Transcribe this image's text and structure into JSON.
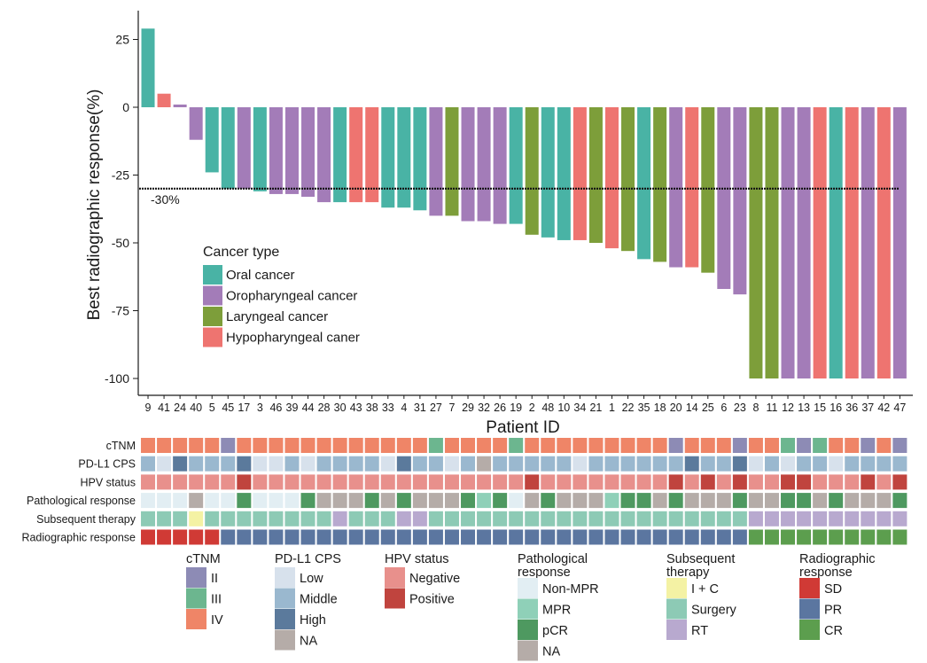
{
  "chart_data": {
    "type": "bar",
    "ylabel": "Best radiographic response(%)",
    "xlabel": "Patient ID",
    "ylim": [
      -105,
      35
    ],
    "yticks": [
      25,
      0,
      -25,
      -50,
      -75,
      -100
    ],
    "threshold": {
      "value": -30,
      "label": "-30%"
    },
    "legend_title": "Cancer type",
    "legend_position": "inside-left",
    "categories": [
      "9",
      "41",
      "24",
      "40",
      "5",
      "45",
      "17",
      "3",
      "46",
      "39",
      "44",
      "28",
      "30",
      "43",
      "38",
      "33",
      "4",
      "31",
      "27",
      "7",
      "29",
      "32",
      "26",
      "19",
      "2",
      "48",
      "10",
      "34",
      "21",
      "1",
      "22",
      "35",
      "18",
      "20",
      "14",
      "25",
      "6",
      "23",
      "8",
      "11",
      "12",
      "13",
      "15",
      "16",
      "36",
      "37",
      "42",
      "47"
    ],
    "values": [
      29,
      5,
      1,
      -12,
      -24,
      -30,
      -30,
      -31,
      -32,
      -32,
      -33,
      -35,
      -35,
      -35,
      -35,
      -37,
      -37,
      -38,
      -40,
      -40,
      -42,
      -42,
      -43,
      -43,
      -47,
      -48,
      -49,
      -49,
      -50,
      -52,
      -53,
      -56,
      -57,
      -59,
      -59,
      -61,
      -67,
      -69,
      -100,
      -100,
      -100,
      -100,
      -100,
      -100,
      -100,
      -100,
      -100,
      -100
    ],
    "series": [
      {
        "name": "Oral cancer",
        "color": "#49b3a5"
      },
      {
        "name": "Oropharyngeal cancer",
        "color": "#a37cb8"
      },
      {
        "name": "Laryngeal cancer",
        "color": "#7d9e3a"
      },
      {
        "name": "Hypopharyngeal caner",
        "color": "#ee7470"
      }
    ],
    "cancer_type_index": [
      0,
      3,
      1,
      1,
      0,
      0,
      1,
      0,
      1,
      1,
      1,
      1,
      0,
      3,
      3,
      0,
      0,
      0,
      1,
      2,
      1,
      1,
      1,
      0,
      2,
      0,
      0,
      3,
      2,
      3,
      2,
      0,
      2,
      1,
      3,
      2,
      1,
      1,
      2,
      2,
      1,
      1,
      3,
      0,
      3,
      1,
      3,
      1
    ],
    "heatmap": {
      "rows": [
        {
          "label": "cTNM",
          "legend_title": "cTNM",
          "categories": [
            "II",
            "III",
            "IV"
          ],
          "colors": [
            "#8d8bb5",
            "#6cb68f",
            "#ef8567"
          ],
          "values": [
            2,
            2,
            2,
            2,
            2,
            0,
            2,
            2,
            2,
            2,
            2,
            2,
            2,
            2,
            2,
            2,
            2,
            2,
            1,
            2,
            2,
            2,
            2,
            1,
            2,
            2,
            2,
            2,
            2,
            2,
            2,
            2,
            2,
            0,
            2,
            2,
            2,
            0,
            2,
            2,
            1,
            0,
            1,
            2,
            2,
            0,
            2,
            0
          ]
        },
        {
          "label": "PD-L1 CPS",
          "legend_title": "PD-L1 CPS",
          "categories": [
            "Low",
            "Middle",
            "High",
            "NA"
          ],
          "colors": [
            "#d7e1ec",
            "#9ab8cf",
            "#5b7a9c",
            "#b5aca8"
          ],
          "values": [
            1,
            0,
            2,
            1,
            1,
            1,
            2,
            0,
            0,
            1,
            0,
            1,
            1,
            1,
            1,
            0,
            2,
            1,
            1,
            0,
            1,
            3,
            1,
            1,
            1,
            1,
            1,
            0,
            1,
            1,
            1,
            1,
            1,
            1,
            2,
            1,
            1,
            2,
            0,
            1,
            0,
            1,
            1,
            0,
            1,
            1,
            1,
            1
          ]
        },
        {
          "label": "HPV status",
          "legend_title": "HPV status",
          "categories": [
            "Negative",
            "Positive"
          ],
          "colors": [
            "#e8908c",
            "#c0443e"
          ],
          "values": [
            0,
            0,
            0,
            0,
            0,
            0,
            1,
            0,
            0,
            0,
            0,
            0,
            0,
            0,
            0,
            0,
            0,
            0,
            0,
            0,
            0,
            0,
            0,
            0,
            1,
            0,
            0,
            0,
            0,
            0,
            0,
            0,
            0,
            1,
            0,
            1,
            0,
            1,
            0,
            0,
            1,
            1,
            0,
            0,
            0,
            1,
            0,
            1
          ]
        },
        {
          "label": "Pathological response",
          "legend_title": "Pathological\nresponse",
          "categories": [
            "Non-MPR",
            "MPR",
            "pCR",
            "NA"
          ],
          "colors": [
            "#e2eef3",
            "#8fd0b8",
            "#4e9960",
            "#b5aca8"
          ],
          "values": [
            0,
            0,
            0,
            3,
            0,
            0,
            2,
            0,
            0,
            0,
            2,
            3,
            3,
            3,
            2,
            3,
            2,
            3,
            3,
            3,
            2,
            1,
            2,
            0,
            3,
            2,
            3,
            3,
            3,
            1,
            2,
            2,
            3,
            2,
            3,
            3,
            3,
            2,
            3,
            3,
            2,
            2,
            3,
            2,
            3,
            3,
            3,
            2
          ]
        },
        {
          "label": "Subsequent therapy",
          "legend_title": "Subsequent\ntherapy",
          "categories": [
            "I + C",
            "Surgery",
            "RT"
          ],
          "colors": [
            "#f4f2a4",
            "#8dcab5",
            "#b8a9cf"
          ],
          "values": [
            1,
            1,
            1,
            0,
            1,
            1,
            1,
            1,
            1,
            1,
            1,
            1,
            2,
            1,
            1,
            1,
            2,
            2,
            1,
            1,
            1,
            1,
            1,
            1,
            1,
            1,
            1,
            1,
            1,
            1,
            1,
            1,
            1,
            1,
            1,
            1,
            1,
            1,
            2,
            2,
            2,
            2,
            2,
            2,
            2,
            2,
            2,
            2
          ]
        },
        {
          "label": "Radiographic response",
          "legend_title": "Radiographic\nresponse",
          "categories": [
            "SD",
            "PR",
            "CR"
          ],
          "colors": [
            "#d03a35",
            "#5b76a0",
            "#5c9e4e"
          ],
          "values": [
            0,
            0,
            0,
            0,
            0,
            1,
            1,
            1,
            1,
            1,
            1,
            1,
            1,
            1,
            1,
            1,
            1,
            1,
            1,
            1,
            1,
            1,
            1,
            1,
            1,
            1,
            1,
            1,
            1,
            1,
            1,
            1,
            1,
            1,
            1,
            1,
            1,
            1,
            2,
            2,
            2,
            2,
            2,
            2,
            2,
            2,
            2,
            2
          ]
        }
      ]
    }
  }
}
